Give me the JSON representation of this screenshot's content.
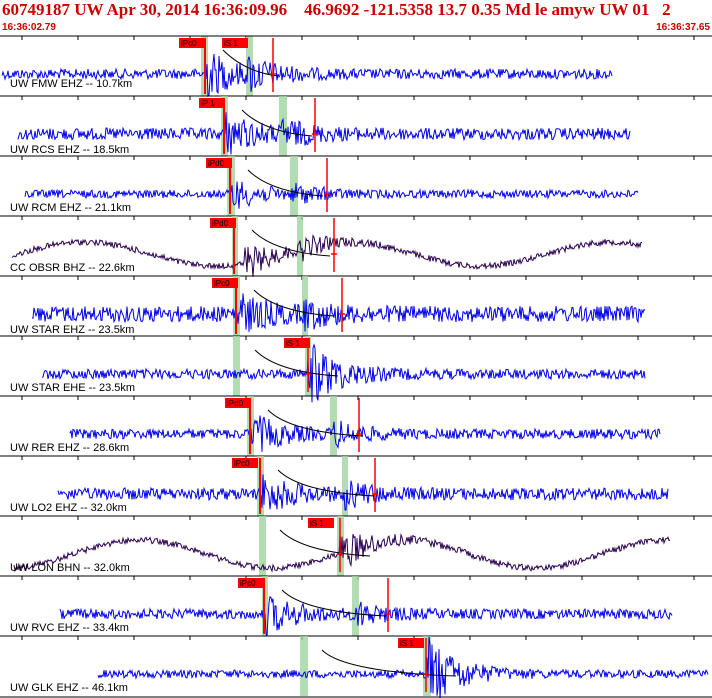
{
  "header": {
    "title": "60749187 UW Apr 30, 2014 16:36:09.96    46.9692 -121.5358 13.7 0.35 Md le amyw UW 01   2",
    "time_start": "16:36:02.79",
    "time_end": "16:36:37.65"
  },
  "colors": {
    "trace_blue": "#0000ee",
    "trace_dark": "#2a0050",
    "pick_red": "#ff0000",
    "window_green": "#9fd49f",
    "text_red": "#cc0000"
  },
  "traces": [
    {
      "label": "UW FMW EHZ -- 10.7km",
      "color": "dark_or_blue",
      "p_label": "iPc0",
      "s_label": "iS 1"
    },
    {
      "label": "UW RCS EHZ -- 18.5km",
      "p_label": "iP 1"
    },
    {
      "label": "UW RCM EHZ -- 21.1km",
      "p_label": "iPd0"
    },
    {
      "label": "CC OBSR BHZ -- 22.6km",
      "p_label": "iPd0"
    },
    {
      "label": "UW STAR EHZ -- 23.5km",
      "p_label": "iPc0"
    },
    {
      "label": "UW STAR EHE -- 23.5km",
      "s_label": "iS 1"
    },
    {
      "label": "UW RER EHZ -- 28.6km",
      "p_label": "iPd0"
    },
    {
      "label": "UW LO2 EHZ -- 32.0km",
      "p_label": "iPc0"
    },
    {
      "label": "UW LON BHN -- 32.0km",
      "s_label": "iS 1"
    },
    {
      "label": "UW RVC EHZ -- 33.4km",
      "p_label": "iPc0"
    },
    {
      "label": "UW GLK EHZ -- 46.1km",
      "s_label": "iS 1"
    }
  ]
}
